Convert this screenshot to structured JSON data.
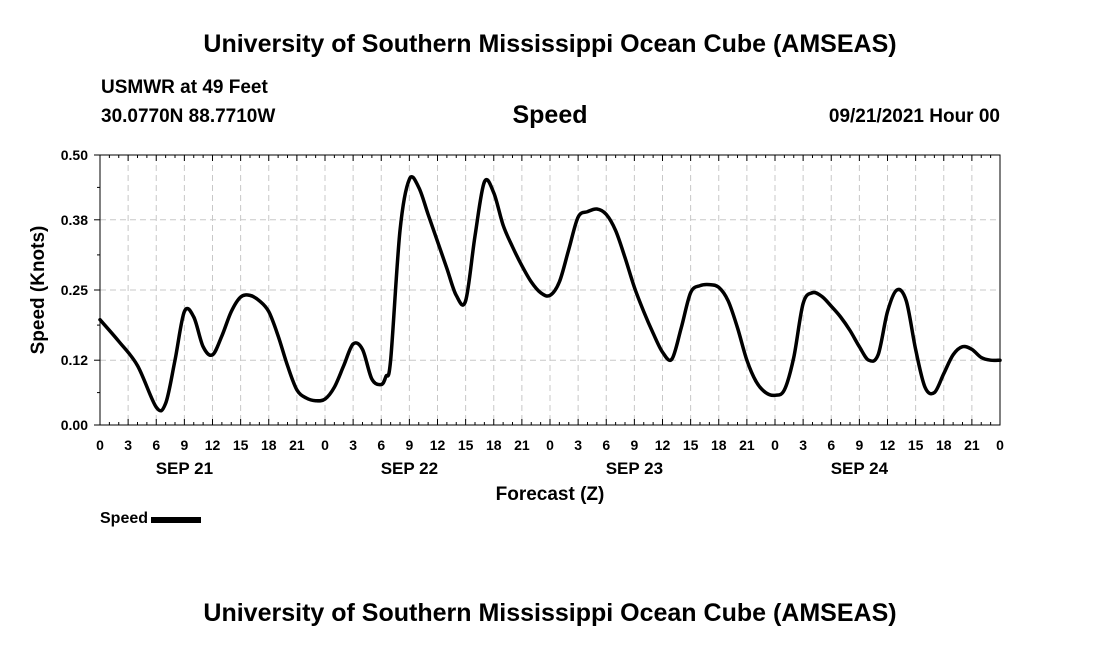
{
  "header": {
    "title": "University of Southern Mississippi Ocean Cube (AMSEAS)",
    "station": "USMWR at 49 Feet",
    "coords": "30.0770N  88.7710W",
    "variable": "Speed",
    "datetime": "09/21/2021 Hour 00"
  },
  "footer": {
    "title": "University of Southern Mississippi Ocean Cube (AMSEAS)"
  },
  "legend": {
    "label": "Speed",
    "color": "#000000"
  },
  "chart_data": {
    "type": "line",
    "title": "Speed",
    "xlabel": "Forecast (Z)",
    "ylabel": "Speed (Knots)",
    "xlim": [
      0,
      96
    ],
    "ylim": [
      0,
      0.5
    ],
    "yticks": [
      0.0,
      0.12,
      0.25,
      0.38,
      0.5
    ],
    "ytick_labels": [
      "0.00",
      "0.12",
      "0.25",
      "0.38",
      "0.50"
    ],
    "xtick_hours": [
      0,
      3,
      6,
      9,
      12,
      15,
      18,
      21,
      24,
      27,
      30,
      33,
      36,
      39,
      42,
      45,
      48,
      51,
      54,
      57,
      60,
      63,
      66,
      69,
      72,
      75,
      78,
      81,
      84,
      87,
      90,
      93,
      96
    ],
    "xtick_labels": [
      "0",
      "3",
      "6",
      "9",
      "12",
      "15",
      "18",
      "21",
      "0",
      "3",
      "6",
      "9",
      "12",
      "15",
      "18",
      "21",
      "0",
      "3",
      "6",
      "9",
      "12",
      "15",
      "18",
      "21",
      "0",
      "3",
      "6",
      "9",
      "12",
      "15",
      "18",
      "21",
      "0"
    ],
    "day_labels": [
      {
        "hour": 9,
        "label": "SEP 21"
      },
      {
        "hour": 33,
        "label": "SEP 22"
      },
      {
        "hour": 57,
        "label": "SEP 23"
      },
      {
        "hour": 81,
        "label": "SEP 24"
      }
    ],
    "grid": true,
    "line_color": "#000000",
    "series": [
      {
        "name": "Speed",
        "x": [
          0,
          2,
          4,
          6,
          7,
          8,
          9,
          10,
          11,
          12,
          13,
          14,
          15,
          16,
          17,
          18,
          19,
          20,
          21,
          22,
          23,
          24,
          25,
          26,
          27,
          28,
          29,
          30,
          30.5,
          31,
          32,
          33,
          34,
          35,
          36,
          37,
          38,
          39,
          40,
          41,
          42,
          43,
          44,
          45,
          46,
          47,
          48,
          49,
          50,
          51,
          52,
          53,
          54,
          55,
          56,
          57,
          58,
          59,
          60,
          61,
          62,
          63,
          64,
          65,
          66,
          67,
          68,
          69,
          70,
          71,
          72,
          73,
          74,
          75,
          76,
          77,
          78,
          79,
          80,
          81,
          82,
          83,
          84,
          85,
          86,
          87,
          88,
          89,
          90,
          91,
          92,
          93,
          94,
          95,
          96
        ],
        "y": [
          0.195,
          0.155,
          0.11,
          0.033,
          0.04,
          0.12,
          0.21,
          0.2,
          0.145,
          0.13,
          0.165,
          0.21,
          0.237,
          0.24,
          0.23,
          0.21,
          0.165,
          0.11,
          0.065,
          0.05,
          0.045,
          0.048,
          0.07,
          0.11,
          0.15,
          0.14,
          0.085,
          0.075,
          0.09,
          0.12,
          0.36,
          0.455,
          0.44,
          0.39,
          0.34,
          0.29,
          0.24,
          0.23,
          0.35,
          0.45,
          0.43,
          0.37,
          0.33,
          0.295,
          0.265,
          0.245,
          0.24,
          0.265,
          0.325,
          0.385,
          0.395,
          0.4,
          0.39,
          0.36,
          0.31,
          0.255,
          0.21,
          0.17,
          0.135,
          0.122,
          0.18,
          0.245,
          0.258,
          0.26,
          0.255,
          0.23,
          0.18,
          0.12,
          0.08,
          0.06,
          0.055,
          0.065,
          0.125,
          0.225,
          0.245,
          0.238,
          0.22,
          0.2,
          0.175,
          0.145,
          0.12,
          0.13,
          0.21,
          0.25,
          0.23,
          0.14,
          0.07,
          0.06,
          0.095,
          0.13,
          0.145,
          0.14,
          0.125,
          0.12,
          0.12
        ]
      }
    ]
  }
}
